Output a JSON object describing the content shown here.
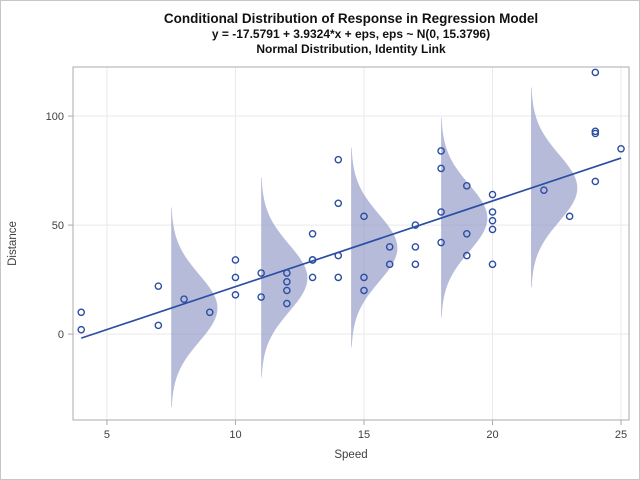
{
  "titles": {
    "line1": "Conditional Distribution of Response in Regression Model",
    "line2": "y = -17.5791 + 3.9324*x + eps, eps ~ N(0, 15.3796)",
    "line3": "Normal Distribution, Identity Link"
  },
  "axes": {
    "x": {
      "label": "Speed",
      "ticks": [
        5,
        10,
        15,
        20,
        25
      ],
      "lim": [
        3.68,
        25.31
      ]
    },
    "y": {
      "label": "Distance",
      "ticks": [
        0,
        50,
        100
      ],
      "lim": [
        -39.4,
        122.5
      ]
    }
  },
  "chart_data": {
    "type": "scatter",
    "title": "Conditional Distribution of Response in Regression Model",
    "subtitle": "y = -17.5791 + 3.9324*x + eps, eps ~ N(0, 15.3796)",
    "subtitle2": "Normal Distribution, Identity Link",
    "xlabel": "Speed",
    "ylabel": "Distance",
    "xlim": [
      3.68,
      25.31
    ],
    "ylim": [
      -39.4,
      122.5
    ],
    "grid": true,
    "points": {
      "x": [
        4,
        4,
        7,
        7,
        8,
        9,
        10,
        10,
        10,
        11,
        11,
        12,
        12,
        12,
        12,
        13,
        13,
        13,
        13,
        14,
        14,
        14,
        14,
        15,
        15,
        15,
        16,
        16,
        17,
        17,
        17,
        18,
        18,
        18,
        18,
        19,
        19,
        19,
        20,
        20,
        20,
        20,
        20,
        22,
        23,
        24,
        24,
        24,
        24,
        25
      ],
      "y": [
        2,
        10,
        4,
        22,
        16,
        10,
        18,
        26,
        34,
        17,
        28,
        14,
        20,
        24,
        28,
        26,
        34,
        34,
        46,
        26,
        36,
        60,
        80,
        20,
        26,
        54,
        32,
        40,
        32,
        40,
        50,
        42,
        56,
        76,
        84,
        36,
        46,
        68,
        32,
        48,
        52,
        56,
        64,
        66,
        54,
        70,
        92,
        93,
        120,
        85
      ]
    },
    "regression_line": {
      "intercept": -17.5791,
      "slope": 3.9324,
      "x_start": 4,
      "x_end": 25
    },
    "density_curves": {
      "distribution": "normal",
      "anchors_x": [
        7.5,
        11,
        14.5,
        18,
        21.5
      ],
      "sigma": 15.3796,
      "span_sigmas": 3,
      "max_width_x_units": 1.8
    }
  },
  "colors": {
    "accent_blue": "#2b4ea2",
    "density_fill": "#8992c4",
    "density_fill_opacity": 0.62,
    "gridline": "#e9e9e9",
    "frame": "#a9abad",
    "tick": "#a9abad",
    "label_text": "#3f3f3f",
    "title_text": "#111111",
    "background": "#ffffff"
  }
}
